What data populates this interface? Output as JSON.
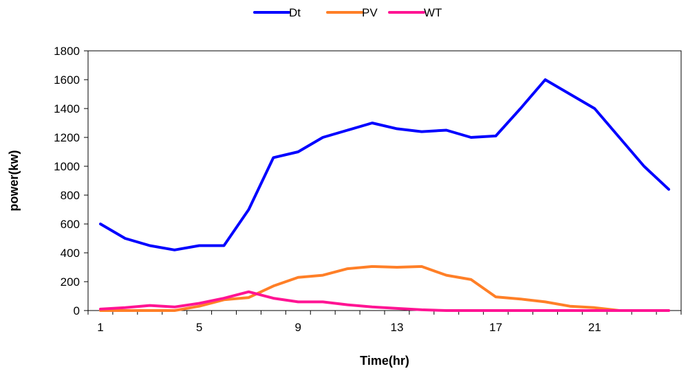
{
  "chart_data": {
    "type": "line",
    "title": "",
    "xlabel": "Time(hr)",
    "ylabel": "power(kw)",
    "x": [
      1,
      2,
      3,
      4,
      5,
      6,
      7,
      8,
      9,
      10,
      11,
      12,
      13,
      14,
      15,
      16,
      17,
      18,
      19,
      20,
      21,
      22,
      23,
      24
    ],
    "xticks": [
      1,
      5,
      9,
      13,
      17,
      21
    ],
    "yticks": [
      0,
      200,
      400,
      600,
      800,
      1000,
      1200,
      1400,
      1600,
      1800
    ],
    "xlim": [
      0.5,
      24.5
    ],
    "ylim": [
      0,
      1800
    ],
    "grid": false,
    "legend_position": "top",
    "series": [
      {
        "name": "Dt",
        "color": "#0000FF",
        "values": [
          600,
          500,
          450,
          420,
          450,
          450,
          700,
          1060,
          1100,
          1200,
          1250,
          1300,
          1260,
          1240,
          1250,
          1200,
          1210,
          1400,
          1600,
          1500,
          1400,
          1200,
          1000,
          840
        ]
      },
      {
        "name": "PV",
        "color": "#FF7F27",
        "values": [
          0,
          0,
          0,
          0,
          30,
          75,
          90,
          170,
          230,
          245,
          290,
          305,
          300,
          305,
          245,
          215,
          95,
          80,
          60,
          30,
          20,
          0,
          0,
          0
        ]
      },
      {
        "name": "WT",
        "color": "#FF1493",
        "values": [
          10,
          20,
          35,
          25,
          50,
          85,
          130,
          85,
          60,
          60,
          40,
          25,
          15,
          5,
          0,
          0,
          0,
          0,
          0,
          0,
          0,
          0,
          0,
          0
        ]
      }
    ]
  }
}
